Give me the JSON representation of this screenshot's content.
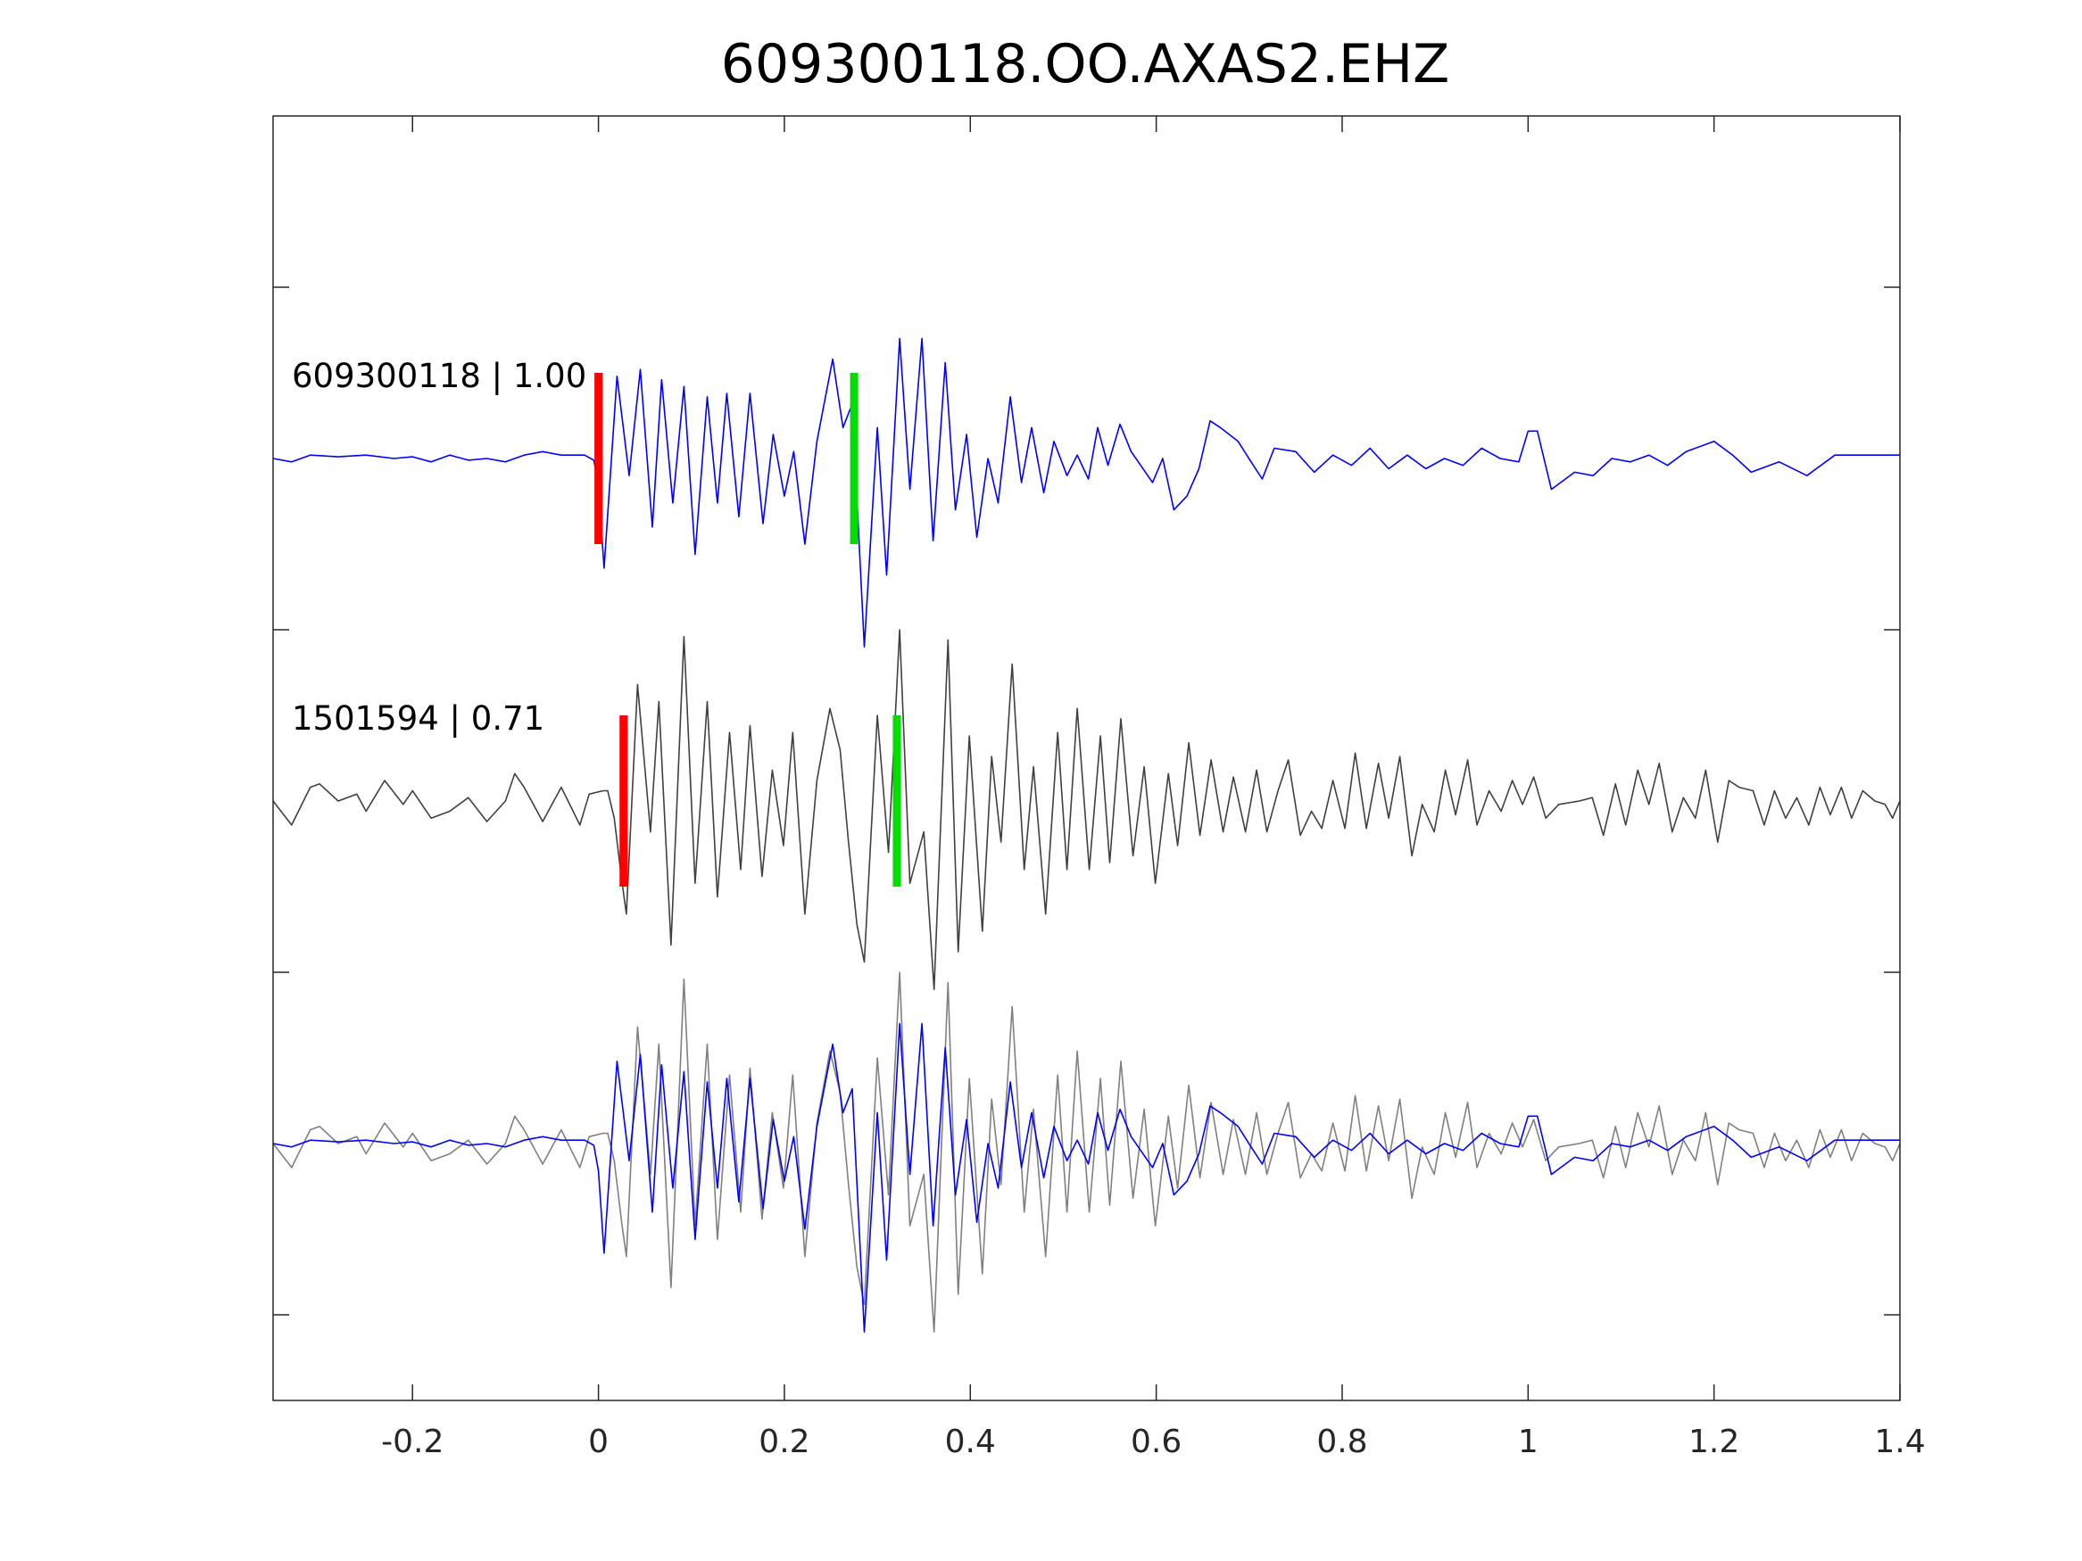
{
  "chart_data": {
    "type": "line",
    "title": "609300118.OO.AXAS2.EHZ",
    "xlabel": "",
    "ylabel": "",
    "xlim": [
      -0.35,
      1.4
    ],
    "ylim": [
      -0.75,
      3.0
    ],
    "xticks": [
      -0.2,
      0,
      0.2,
      0.4,
      0.6,
      0.8,
      1,
      1.2,
      1.4
    ],
    "xtick_labels": [
      "-0.2",
      "0",
      "0.2",
      "0.4",
      "0.6",
      "0.8",
      "1",
      "1.2",
      "1.4"
    ],
    "yticks": [
      -0.5,
      0.5,
      1.5,
      2.5
    ],
    "grid": false,
    "colors": {
      "template": "#0000ff",
      "detection": "#404040",
      "overlay_detection": "#808080",
      "p_pick": "#ff0000",
      "s_pick": "#00dd00",
      "axes": "#262626"
    },
    "traces": [
      {
        "label": "609300118 | 1.00",
        "offset": 2,
        "series": "template",
        "p_pick": 0,
        "s_pick": 0.275
      },
      {
        "label": "1501594 | 0.71",
        "offset": 1,
        "series": "detection",
        "p_pick": 0.027,
        "s_pick": 0.321
      },
      {
        "label": "",
        "offset": 0,
        "overlay": [
          "overlay_detection",
          "template"
        ]
      }
    ],
    "pick_half_height": 0.25,
    "series": {
      "template": {
        "t": [
          -0.35,
          -0.33,
          -0.31,
          -0.28,
          -0.25,
          -0.22,
          -0.2,
          -0.18,
          -0.16,
          -0.14,
          -0.12,
          -0.1,
          -0.08,
          -0.06,
          -0.04,
          -0.015,
          -0.005,
          0.0,
          0.006,
          0.02,
          0.033,
          0.045,
          0.058,
          0.068,
          0.08,
          0.092,
          0.104,
          0.117,
          0.128,
          0.138,
          0.151,
          0.163,
          0.177,
          0.188,
          0.2,
          0.21,
          0.222,
          0.235,
          0.252,
          0.263,
          0.273,
          0.286,
          0.3,
          0.31,
          0.324,
          0.335,
          0.348,
          0.36,
          0.373,
          0.384,
          0.396,
          0.407,
          0.419,
          0.43,
          0.443,
          0.455,
          0.466,
          0.479,
          0.49,
          0.504,
          0.515,
          0.527,
          0.537,
          0.548,
          0.561,
          0.573,
          0.596,
          0.607,
          0.619,
          0.633,
          0.646,
          0.658,
          0.669,
          0.688,
          0.702,
          0.714,
          0.727,
          0.75,
          0.77,
          0.79,
          0.81,
          0.83,
          0.85,
          0.87,
          0.89,
          0.91,
          0.93,
          0.95,
          0.97,
          0.99,
          1.0,
          1.01,
          1.025,
          1.05,
          1.07,
          1.09,
          1.11,
          1.13,
          1.15,
          1.17,
          1.2,
          1.22,
          1.24,
          1.27,
          1.3,
          1.33,
          1.36,
          1.4
        ],
        "amp": [
          0,
          -0.01,
          0.01,
          0.005,
          0.01,
          0,
          0.005,
          -0.01,
          0.01,
          -0.005,
          0,
          -0.01,
          0.01,
          0.02,
          0.01,
          0.01,
          -0.005,
          -0.08,
          -0.32,
          0.24,
          -0.05,
          0.26,
          -0.2,
          0.23,
          -0.13,
          0.21,
          -0.28,
          0.18,
          -0.13,
          0.19,
          -0.17,
          0.19,
          -0.19,
          0.07,
          -0.11,
          0.02,
          -0.25,
          0.05,
          0.29,
          0.09,
          0.16,
          -0.55,
          0.09,
          -0.34,
          0.35,
          -0.09,
          0.35,
          -0.24,
          0.28,
          -0.15,
          0.07,
          -0.23,
          0,
          -0.13,
          0.18,
          -0.07,
          0.09,
          -0.1,
          0.05,
          -0.05,
          0.01,
          -0.06,
          0.09,
          -0.02,
          0.1,
          0.02,
          -0.07,
          0,
          -0.15,
          -0.11,
          -0.03,
          0.11,
          0.09,
          0.05,
          -0.01,
          -0.06,
          0.03,
          0.02,
          -0.04,
          0.01,
          -0.02,
          0.03,
          -0.03,
          0.01,
          -0.03,
          0,
          -0.02,
          0.03,
          0,
          -0.01,
          0.08,
          0.08,
          -0.09,
          -0.04,
          -0.05,
          0,
          -0.01,
          0.01,
          -0.02,
          0.02,
          0.05,
          0.01,
          -0.04,
          -0.01,
          -0.05,
          0.01,
          0.01,
          0.01
        ]
      },
      "detection": {
        "t": [
          -0.35,
          -0.33,
          -0.31,
          -0.3,
          -0.28,
          -0.26,
          -0.25,
          -0.23,
          -0.21,
          -0.2,
          -0.18,
          -0.16,
          -0.14,
          -0.12,
          -0.1,
          -0.09,
          -0.08,
          -0.06,
          -0.04,
          -0.02,
          -0.01,
          0.005,
          0.01,
          0.017,
          0.025,
          0.03,
          0.042,
          0.056,
          0.065,
          0.078,
          0.092,
          0.104,
          0.117,
          0.128,
          0.141,
          0.153,
          0.163,
          0.176,
          0.187,
          0.199,
          0.209,
          0.222,
          0.235,
          0.249,
          0.26,
          0.269,
          0.278,
          0.286,
          0.3,
          0.312,
          0.324,
          0.335,
          0.35,
          0.361,
          0.376,
          0.387,
          0.399,
          0.413,
          0.423,
          0.433,
          0.445,
          0.458,
          0.468,
          0.481,
          0.494,
          0.504,
          0.515,
          0.528,
          0.54,
          0.55,
          0.562,
          0.575,
          0.587,
          0.599,
          0.613,
          0.623,
          0.635,
          0.647,
          0.659,
          0.672,
          0.683,
          0.696,
          0.708,
          0.719,
          0.731,
          0.742,
          0.755,
          0.767,
          0.778,
          0.79,
          0.803,
          0.814,
          0.826,
          0.839,
          0.85,
          0.862,
          0.875,
          0.886,
          0.899,
          0.911,
          0.922,
          0.935,
          0.945,
          0.958,
          0.971,
          0.983,
          0.994,
          1.006,
          1.019,
          1.033,
          1.055,
          1.069,
          1.081,
          1.094,
          1.105,
          1.118,
          1.13,
          1.141,
          1.155,
          1.167,
          1.18,
          1.191,
          1.204,
          1.216,
          1.227,
          1.242,
          1.254,
          1.265,
          1.277,
          1.289,
          1.302,
          1.314,
          1.325,
          1.337,
          1.348,
          1.36,
          1.373,
          1.384,
          1.392,
          1.4
        ],
        "amp": [
          0,
          -0.07,
          0.04,
          0.05,
          0,
          0.02,
          -0.03,
          0.06,
          -0.01,
          0.03,
          -0.05,
          -0.03,
          0.01,
          -0.06,
          0,
          0.08,
          0.04,
          -0.06,
          0.04,
          -0.07,
          0.02,
          0.03,
          0.03,
          -0.05,
          -0.23,
          -0.33,
          0.34,
          -0.09,
          0.29,
          -0.42,
          0.48,
          -0.24,
          0.29,
          -0.28,
          0.2,
          -0.2,
          0.22,
          -0.22,
          0.09,
          -0.13,
          0.2,
          -0.33,
          0.06,
          0.27,
          0.15,
          -0.12,
          -0.36,
          -0.47,
          0.25,
          -0.15,
          0.5,
          -0.24,
          -0.09,
          -0.55,
          0.47,
          -0.44,
          0.19,
          -0.38,
          0.13,
          -0.12,
          0.4,
          -0.2,
          0.1,
          -0.33,
          0.2,
          -0.2,
          0.27,
          -0.2,
          0.19,
          -0.18,
          0.24,
          -0.16,
          0.1,
          -0.24,
          0.08,
          -0.13,
          0.17,
          -0.1,
          0.12,
          -0.09,
          0.07,
          -0.09,
          0.09,
          -0.09,
          0.03,
          0.12,
          -0.1,
          -0.03,
          -0.08,
          0.06,
          -0.08,
          0.14,
          -0.08,
          0.11,
          -0.05,
          0.13,
          -0.16,
          -0.01,
          -0.09,
          0.09,
          -0.04,
          0.12,
          -0.07,
          0.03,
          -0.03,
          0.06,
          -0.01,
          0.07,
          -0.05,
          -0.01,
          0,
          0.01,
          -0.1,
          0.05,
          -0.07,
          0.09,
          -0.01,
          0.11,
          -0.09,
          0.01,
          -0.05,
          0.09,
          -0.12,
          0.06,
          0.04,
          0.03,
          -0.07,
          0.03,
          -0.05,
          0.01,
          -0.07,
          0.04,
          -0.04,
          0.04,
          -0.05,
          0.03,
          0,
          -0.01,
          -0.05,
          0
        ]
      }
    }
  }
}
